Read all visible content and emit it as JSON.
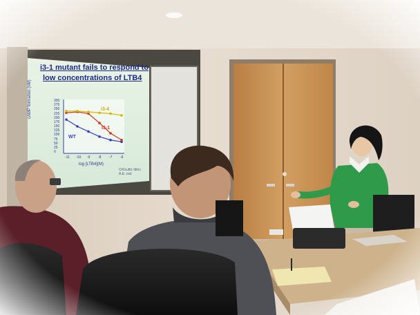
{
  "photo": {
    "slide": {
      "title_line1": "i3-1 mutant fails to respond to",
      "title_line2": "low concentrations of LTB4",
      "y_axis_label": "cAMP formation (nM)",
      "x_axis_label": "log [LTB4](M)",
      "citation": "OXIcultic ldtnc A.E..cwl.",
      "series_labels": {
        "g31": "i3-1",
        "wt": "WT",
        "mutant": "i3-4"
      },
      "y_ticks": [
        "300",
        "275",
        "250",
        "225",
        "200",
        "175",
        "150",
        "125",
        "100",
        "75",
        "50",
        "25",
        "0"
      ],
      "x_ticks": [
        "-11",
        "-10",
        "-9",
        "-8",
        "-7",
        "-6"
      ]
    },
    "colors": {
      "wall": "#e8ddd0",
      "door": "#c9955a",
      "slide_bg": "#dfeedd",
      "presenter_shirt": "#2f9a4a",
      "table": "#cdb28c"
    }
  },
  "chart_data": {
    "type": "line",
    "x": [
      -11,
      -10,
      -9,
      -8,
      -7,
      -6
    ],
    "series": [
      {
        "name": "WT",
        "values": [
          190,
          150,
          120,
          90,
          70,
          60
        ]
      },
      {
        "name": "i3-1",
        "values": [
          230,
          235,
          225,
          170,
          110,
          70
        ]
      },
      {
        "name": "i3-4",
        "values": [
          240,
          240,
          235,
          230,
          225,
          215
        ]
      }
    ],
    "xlabel": "log [LTB4](M)",
    "ylabel": "cAMP formation (nM)",
    "ylim": [
      0,
      300
    ]
  }
}
